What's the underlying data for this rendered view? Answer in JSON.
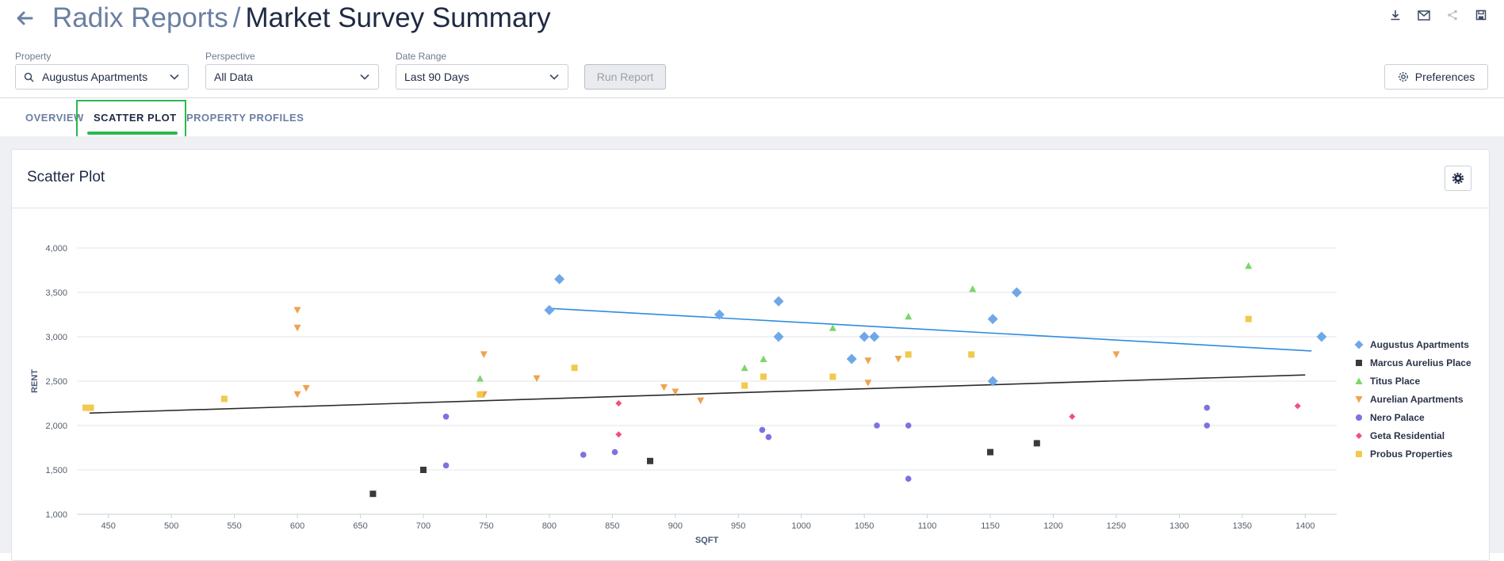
{
  "header": {
    "crumb": "Radix Reports",
    "separator": "/",
    "title": "Market Survey Summary",
    "icons": [
      "download-icon",
      "mail-icon",
      "share-icon",
      "save-icon"
    ]
  },
  "filters": {
    "property_label": "Property",
    "property_value": "Augustus Apartments",
    "perspective_label": "Perspective",
    "perspective_value": "All Data",
    "date_label": "Date Range",
    "date_value": "Last 90 Days",
    "run_label": "Run Report",
    "preferences_label": "Preferences"
  },
  "tabs": [
    {
      "label": "OVERVIEW",
      "active": false
    },
    {
      "label": "SCATTER PLOT",
      "active": true
    },
    {
      "label": "PROPERTY PROFILES",
      "active": false
    }
  ],
  "card": {
    "title": "Scatter Plot"
  },
  "colors": {
    "accent": "#2bb84f",
    "text": "#1f2a44"
  },
  "chart_data": {
    "type": "scatter",
    "xlabel": "SQFT",
    "ylabel": "RENT",
    "xlim": [
      425,
      1425
    ],
    "ylim": [
      1000,
      4000
    ],
    "x_ticks": [
      450,
      500,
      550,
      600,
      650,
      700,
      750,
      800,
      850,
      900,
      950,
      1000,
      1050,
      1100,
      1150,
      1200,
      1250,
      1300,
      1350,
      1400
    ],
    "y_ticks": [
      1000,
      1500,
      2000,
      2500,
      3000,
      3500,
      4000
    ],
    "grid": true,
    "legend_position": "right",
    "series": [
      {
        "name": "Augustus Apartments",
        "color": "#6fa8e8",
        "marker": "diamond",
        "points": [
          [
            800,
            3300
          ],
          [
            808,
            3650
          ],
          [
            935,
            3250
          ],
          [
            982,
            3400
          ],
          [
            982,
            3000
          ],
          [
            1040,
            2750
          ],
          [
            1050,
            3000
          ],
          [
            1058,
            3000
          ],
          [
            1152,
            3200
          ],
          [
            1152,
            2500
          ],
          [
            1171,
            3500
          ],
          [
            1413,
            3000
          ]
        ]
      },
      {
        "name": "Marcus Aurelius Place",
        "color": "#3a3a3a",
        "marker": "square",
        "points": [
          [
            660,
            1230
          ],
          [
            700,
            1500
          ],
          [
            880,
            1600
          ],
          [
            1150,
            1700
          ],
          [
            1187,
            1800
          ]
        ]
      },
      {
        "name": "Titus Place",
        "color": "#7bd66b",
        "marker": "triangle-up",
        "points": [
          [
            745,
            2530
          ],
          [
            955,
            2650
          ],
          [
            970,
            2750
          ],
          [
            1025,
            3100
          ],
          [
            1085,
            3230
          ],
          [
            1136,
            3540
          ],
          [
            1355,
            3800
          ]
        ]
      },
      {
        "name": "Aurelian Apartments",
        "color": "#f0a24f",
        "marker": "triangle-down",
        "points": [
          [
            600,
            3300
          ],
          [
            600,
            3100
          ],
          [
            600,
            2350
          ],
          [
            607,
            2420
          ],
          [
            748,
            2800
          ],
          [
            748,
            2350
          ],
          [
            790,
            2530
          ],
          [
            891,
            2430
          ],
          [
            900,
            2380
          ],
          [
            920,
            2280
          ],
          [
            1053,
            2730
          ],
          [
            1053,
            2480
          ],
          [
            1077,
            2750
          ],
          [
            1250,
            2800
          ]
        ]
      },
      {
        "name": "Nero Palace",
        "color": "#7b73e0",
        "marker": "circle",
        "points": [
          [
            718,
            2100
          ],
          [
            718,
            1550
          ],
          [
            827,
            1670
          ],
          [
            852,
            1700
          ],
          [
            969,
            1950
          ],
          [
            974,
            1870
          ],
          [
            1060,
            2000
          ],
          [
            1085,
            2000
          ],
          [
            1085,
            1400
          ],
          [
            1322,
            2200
          ],
          [
            1322,
            2000
          ]
        ]
      },
      {
        "name": "Geta Residential",
        "color": "#f0507a",
        "marker": "diamond-small",
        "points": [
          [
            855,
            2250
          ],
          [
            855,
            1900
          ],
          [
            1215,
            2100
          ],
          [
            1394,
            2220
          ]
        ]
      },
      {
        "name": "Probus Properties",
        "color": "#f2c94c",
        "marker": "square",
        "points": [
          [
            432,
            2200
          ],
          [
            436,
            2200
          ],
          [
            542,
            2300
          ],
          [
            745,
            2350
          ],
          [
            820,
            2650
          ],
          [
            955,
            2450
          ],
          [
            970,
            2550
          ],
          [
            1025,
            2550
          ],
          [
            1085,
            2800
          ],
          [
            1135,
            2800
          ],
          [
            1355,
            3200
          ]
        ]
      }
    ],
    "trendlines": [
      {
        "color": "#2f8be0",
        "from": [
          800,
          3320
        ],
        "to": [
          1405,
          2840
        ]
      },
      {
        "color": "#2b2b2b",
        "from": [
          435,
          2140
        ],
        "to": [
          1400,
          2570
        ]
      }
    ]
  }
}
